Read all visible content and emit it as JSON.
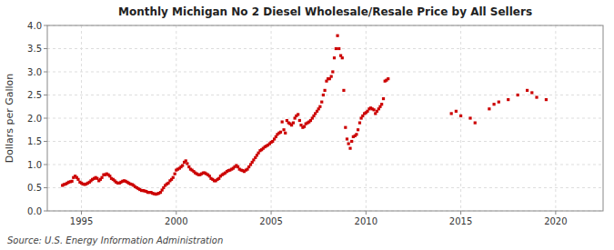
{
  "chart_data": {
    "type": "scatter",
    "title": "Monthly Michigan No 2 Diesel Wholesale/Resale Price by All Sellers",
    "ylabel": "Dollars per Gallon",
    "source": "Source: U.S. Energy Information Administration",
    "color": "#CC0000",
    "marker": "square",
    "grid": true,
    "xlim": [
      1993.2,
      2022.5
    ],
    "ylim": [
      0.0,
      4.0
    ],
    "xticks": [
      1995,
      2000,
      2005,
      2010,
      2015,
      2020
    ],
    "yticks": [
      {
        "value": 0.0,
        "label": "0.0"
      },
      0.5,
      {
        "value": 1.0,
        "label": "1.0"
      },
      1.5,
      {
        "value": 2.0,
        "label": "2.0"
      },
      2.5,
      {
        "value": 3.0,
        "label": "3.0"
      },
      3.5,
      {
        "value": 4.0,
        "label": "4.0"
      }
    ],
    "x": [
      1994.0,
      1994.08,
      1994.17,
      1994.25,
      1994.33,
      1994.42,
      1994.5,
      1994.58,
      1994.67,
      1994.75,
      1994.83,
      1994.92,
      1995.0,
      1995.08,
      1995.17,
      1995.25,
      1995.33,
      1995.42,
      1995.5,
      1995.58,
      1995.67,
      1995.75,
      1995.83,
      1995.92,
      1996.0,
      1996.08,
      1996.17,
      1996.25,
      1996.33,
      1996.42,
      1996.5,
      1996.58,
      1996.67,
      1996.75,
      1996.83,
      1996.92,
      1997.0,
      1997.08,
      1997.17,
      1997.25,
      1997.33,
      1997.42,
      1997.5,
      1997.58,
      1997.67,
      1997.75,
      1997.83,
      1997.92,
      1998.0,
      1998.08,
      1998.17,
      1998.25,
      1998.33,
      1998.42,
      1998.5,
      1998.58,
      1998.67,
      1998.75,
      1998.83,
      1998.92,
      1999.0,
      1999.08,
      1999.17,
      1999.25,
      1999.33,
      1999.42,
      1999.5,
      1999.58,
      1999.67,
      1999.75,
      1999.83,
      1999.92,
      2000.0,
      2000.08,
      2000.17,
      2000.25,
      2000.33,
      2000.42,
      2000.5,
      2000.58,
      2000.67,
      2000.75,
      2000.83,
      2000.92,
      2001.0,
      2001.08,
      2001.17,
      2001.25,
      2001.33,
      2001.42,
      2001.5,
      2001.58,
      2001.67,
      2001.75,
      2001.83,
      2001.92,
      2002.0,
      2002.08,
      2002.17,
      2002.25,
      2002.33,
      2002.42,
      2002.5,
      2002.58,
      2002.67,
      2002.75,
      2002.83,
      2002.92,
      2003.0,
      2003.08,
      2003.17,
      2003.25,
      2003.33,
      2003.42,
      2003.5,
      2003.58,
      2003.67,
      2003.75,
      2003.83,
      2003.92,
      2004.0,
      2004.08,
      2004.17,
      2004.25,
      2004.33,
      2004.42,
      2004.5,
      2004.58,
      2004.67,
      2004.75,
      2004.83,
      2004.92,
      2005.0,
      2005.08,
      2005.17,
      2005.25,
      2005.33,
      2005.42,
      2005.5,
      2005.58,
      2005.67,
      2005.75,
      2005.83,
      2005.92,
      2006.0,
      2006.08,
      2006.17,
      2006.25,
      2006.33,
      2006.42,
      2006.5,
      2006.58,
      2006.67,
      2006.75,
      2006.83,
      2006.92,
      2007.0,
      2007.08,
      2007.17,
      2007.25,
      2007.33,
      2007.42,
      2007.5,
      2007.58,
      2007.67,
      2007.75,
      2007.83,
      2007.92,
      2008.0,
      2008.08,
      2008.17,
      2008.25,
      2008.33,
      2008.42,
      2008.5,
      2008.58,
      2008.67,
      2008.75,
      2008.83,
      2008.92,
      2009.0,
      2009.08,
      2009.17,
      2009.25,
      2009.33,
      2009.42,
      2009.5,
      2009.58,
      2009.67,
      2009.75,
      2009.83,
      2009.92,
      2010.0,
      2010.08,
      2010.17,
      2010.25,
      2010.33,
      2010.42,
      2010.5,
      2010.58,
      2010.67,
      2010.75,
      2010.83,
      2010.92,
      2011.0,
      2011.08,
      2011.17,
      2014.5,
      2014.75,
      2015.0,
      2015.5,
      2015.75,
      2016.5,
      2016.75,
      2017.0,
      2017.5,
      2018.0,
      2018.5,
      2018.75,
      2019.0,
      2019.5
    ],
    "values": [
      0.55,
      0.57,
      0.58,
      0.6,
      0.62,
      0.63,
      0.64,
      0.72,
      0.75,
      0.72,
      0.68,
      0.62,
      0.6,
      0.58,
      0.57,
      0.58,
      0.6,
      0.62,
      0.65,
      0.68,
      0.7,
      0.72,
      0.7,
      0.65,
      0.68,
      0.72,
      0.78,
      0.78,
      0.8,
      0.78,
      0.75,
      0.7,
      0.68,
      0.65,
      0.62,
      0.6,
      0.6,
      0.62,
      0.64,
      0.65,
      0.64,
      0.62,
      0.6,
      0.58,
      0.57,
      0.55,
      0.52,
      0.5,
      0.48,
      0.46,
      0.44,
      0.44,
      0.43,
      0.42,
      0.4,
      0.4,
      0.4,
      0.38,
      0.37,
      0.36,
      0.37,
      0.38,
      0.4,
      0.45,
      0.5,
      0.55,
      0.58,
      0.6,
      0.65,
      0.68,
      0.72,
      0.8,
      0.88,
      0.9,
      0.92,
      0.95,
      0.98,
      1.05,
      1.08,
      1.02,
      0.95,
      0.9,
      0.88,
      0.85,
      0.82,
      0.8,
      0.78,
      0.78,
      0.8,
      0.82,
      0.82,
      0.8,
      0.78,
      0.75,
      0.7,
      0.68,
      0.65,
      0.65,
      0.68,
      0.7,
      0.75,
      0.78,
      0.8,
      0.82,
      0.85,
      0.87,
      0.88,
      0.9,
      0.92,
      0.95,
      0.98,
      0.95,
      0.9,
      0.88,
      0.87,
      0.85,
      0.88,
      0.9,
      0.95,
      1.0,
      1.05,
      1.1,
      1.15,
      1.2,
      1.25,
      1.3,
      1.32,
      1.35,
      1.38,
      1.4,
      1.42,
      1.45,
      1.48,
      1.5,
      1.55,
      1.6,
      1.65,
      1.68,
      1.7,
      1.92,
      1.75,
      1.68,
      1.95,
      1.9,
      1.88,
      1.85,
      1.9,
      2.0,
      2.05,
      2.08,
      1.95,
      1.85,
      1.8,
      1.82,
      1.88,
      1.9,
      1.92,
      1.95,
      2.0,
      2.05,
      2.1,
      2.15,
      2.2,
      2.25,
      2.35,
      2.5,
      2.6,
      2.8,
      2.85,
      2.85,
      2.9,
      3.0,
      3.3,
      3.5,
      3.78,
      3.5,
      3.35,
      3.3,
      2.6,
      1.8,
      1.55,
      1.45,
      1.35,
      1.5,
      1.6,
      1.62,
      1.65,
      1.75,
      1.9,
      2.0,
      2.05,
      2.1,
      2.12,
      2.15,
      2.2,
      2.22,
      2.2,
      2.18,
      2.1,
      2.15,
      2.2,
      2.25,
      2.3,
      2.42,
      2.8,
      2.82,
      2.85,
      2.1,
      2.15,
      2.05,
      2.0,
      1.9,
      2.2,
      2.3,
      2.35,
      2.4,
      2.5,
      2.6,
      2.55,
      2.45,
      2.4
    ]
  }
}
